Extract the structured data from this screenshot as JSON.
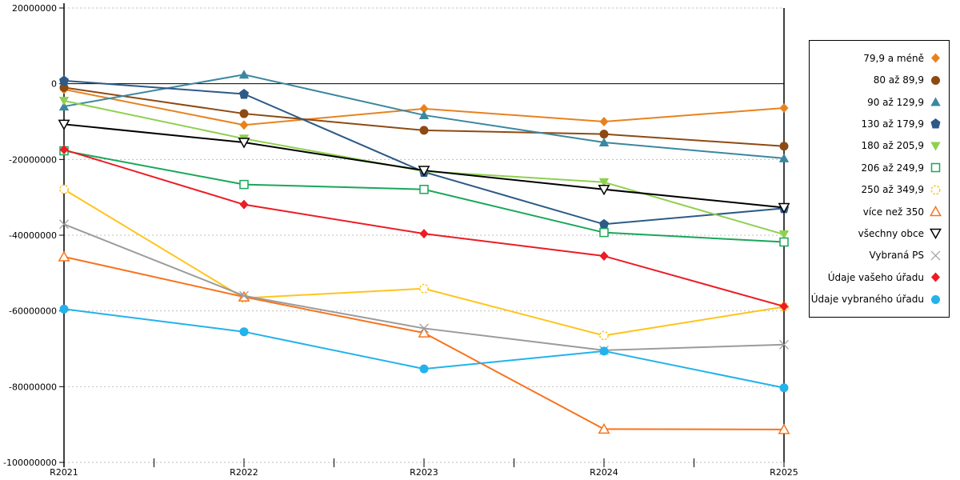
{
  "chart_data": {
    "type": "line",
    "title": "",
    "xlabel": "",
    "ylabel": "",
    "categories": [
      "R2021",
      "R2022",
      "R2023",
      "R2024",
      "R2025"
    ],
    "ylim": [
      -100000000,
      20000000
    ],
    "ytick_interval": 20000000,
    "ytick_labels": [
      "20000000",
      "0",
      "-20000000",
      "-40000000",
      "-60000000",
      "-80000000",
      "-100000000"
    ],
    "grid": "horizontal-dashed",
    "zero_line": "solid-black",
    "legend_position": "right",
    "gridline_color": "#bfbfbf",
    "axis_color": "#000000",
    "series": [
      {
        "name": "79,9 a méně",
        "color": "#E8821E",
        "marker": "diamond",
        "values": [
          -1500000,
          -10900000,
          -6600000,
          -10000000,
          -6400000
        ]
      },
      {
        "name": "80 až 89,9",
        "color": "#8D4A13",
        "marker": "circle",
        "values": [
          -1000000,
          -7900000,
          -12300000,
          -13300000,
          -16500000
        ]
      },
      {
        "name": "90 až 129,9",
        "color": "#3B87A0",
        "marker": "triangle-up",
        "values": [
          -6000000,
          2400000,
          -8300000,
          -15500000,
          -19700000
        ]
      },
      {
        "name": "130 až 179,9",
        "color": "#2D5A87",
        "marker": "pentagon",
        "values": [
          800000,
          -2700000,
          -23300000,
          -37100000,
          -32900000
        ]
      },
      {
        "name": "180 až 205,9",
        "color": "#8FD04E",
        "marker": "triangle-down",
        "values": [
          -4500000,
          -14500000,
          -23100000,
          -26000000,
          -39800000
        ]
      },
      {
        "name": "206 až 249,9",
        "color": "#18A75A",
        "marker": "square-open",
        "values": [
          -17700000,
          -26600000,
          -27900000,
          -39300000,
          -41800000
        ]
      },
      {
        "name": "250 až 349,9",
        "color": "#FFC41D",
        "marker": "circle-open-dashed",
        "values": [
          -27900000,
          -56600000,
          -54100000,
          -66500000,
          -58900000
        ]
      },
      {
        "name": "více než 350",
        "color": "#F9731D",
        "marker": "triangle-open",
        "values": [
          -45700000,
          -56300000,
          -65800000,
          -91200000,
          -91300000
        ]
      },
      {
        "name": "všechny obce",
        "color": "#000000",
        "marker": "nabla-open",
        "values": [
          -10700000,
          -15500000,
          -22900000,
          -27900000,
          -32700000
        ]
      },
      {
        "name": "Vybraná PS",
        "color": "#9B9B9B",
        "marker": "x-cross",
        "values": [
          -37100000,
          -56000000,
          -64600000,
          -70400000,
          -68900000
        ]
      },
      {
        "name": "Údaje vašeho úřadu",
        "color": "#EC1C24",
        "marker": "diamond",
        "values": [
          -17400000,
          -31900000,
          -39600000,
          -45500000,
          -58800000
        ]
      },
      {
        "name": "Údaje vybraného úřadu",
        "color": "#22B2EC",
        "marker": "circle",
        "values": [
          -59500000,
          -65500000,
          -75300000,
          -70600000,
          -80300000
        ]
      }
    ]
  }
}
